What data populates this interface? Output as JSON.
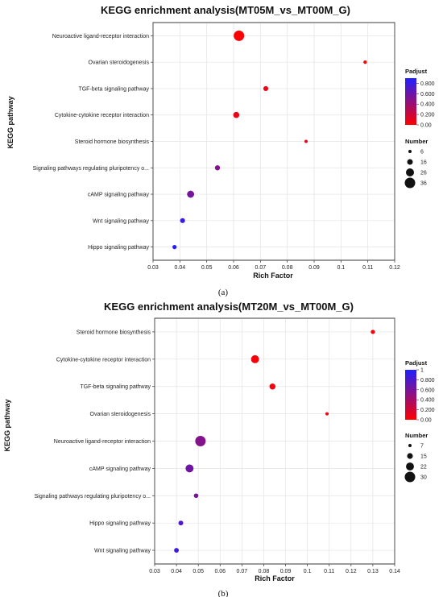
{
  "chart_data": [
    {
      "type": "scatter",
      "title": "KEGG enrichment analysis(MT05M_vs_MT00M_G)",
      "xlabel": "Rich Factor",
      "ylabel": "KEGG pathway",
      "xlim": [
        0.03,
        0.12
      ],
      "xticks": [
        "0.03",
        "0.04",
        "0.05",
        "0.06",
        "0.07",
        "0.08",
        "0.09",
        "0.1",
        "0.11",
        "0.12"
      ],
      "grid": true,
      "caption": "(a)",
      "color_legend": {
        "title": "Padjust",
        "ticks": [
          "0.800",
          "0.600",
          "0.400",
          "0.200",
          "0.00"
        ],
        "min": 0,
        "max": 0.9,
        "low_color": "#ff0000",
        "high_color": "#2020ff"
      },
      "size_legend": {
        "title": "Number",
        "values": [
          6,
          16,
          26,
          36
        ]
      },
      "categories": [
        "Neuroactive ligand-receptor interaction",
        "Ovarian steroidogenesis",
        "TGF-beta signaling pathway",
        "Cytokine-cytokine receptor interaction",
        "Steroid hormone biosynthesis",
        "Signaling pathways regulating pluripotency o...",
        "cAMP signaling pathway",
        "Wnt signaling pathway",
        "Hippo signaling pathway"
      ],
      "points": [
        {
          "category": "Neuroactive ligand-receptor interaction",
          "x": 0.062,
          "number": 36,
          "padjust": 0.02
        },
        {
          "category": "Ovarian steroidogenesis",
          "x": 0.109,
          "number": 7,
          "padjust": 0.03
        },
        {
          "category": "TGF-beta signaling pathway",
          "x": 0.072,
          "number": 13,
          "padjust": 0.05
        },
        {
          "category": "Cytokine-cytokine receptor interaction",
          "x": 0.061,
          "number": 18,
          "padjust": 0.08
        },
        {
          "category": "Steroid hormone biosynthesis",
          "x": 0.087,
          "number": 6,
          "padjust": 0.1
        },
        {
          "category": "Signaling pathways regulating pluripotency o...",
          "x": 0.054,
          "number": 14,
          "padjust": 0.5
        },
        {
          "category": "cAMP signaling pathway",
          "x": 0.044,
          "number": 22,
          "padjust": 0.55
        },
        {
          "category": "Wnt signaling pathway",
          "x": 0.041,
          "number": 13,
          "padjust": 0.78
        },
        {
          "category": "Hippo signaling pathway",
          "x": 0.038,
          "number": 10,
          "padjust": 0.88
        }
      ]
    },
    {
      "type": "scatter",
      "title": "KEGG enrichment analysis(MT20M_vs_MT00M_G)",
      "xlabel": "Rich Factor",
      "ylabel": "KEGG pathway",
      "xlim": [
        0.03,
        0.14
      ],
      "xticks": [
        "0.03",
        "0.04",
        "0.05",
        "0.06",
        "0.07",
        "0.08",
        "0.09",
        "0.1",
        "0.11",
        "0.12",
        "0.13",
        "0.14"
      ],
      "grid": true,
      "caption": "(b)",
      "color_legend": {
        "title": "Padjust",
        "ticks": [
          "1",
          "0.800",
          "0.600",
          "0.400",
          "0.200",
          "0.00"
        ],
        "min": 0,
        "max": 1,
        "low_color": "#ff0000",
        "high_color": "#2020ff"
      },
      "size_legend": {
        "title": "Number",
        "values": [
          7,
          15,
          22,
          30
        ]
      },
      "categories": [
        "Steroid hormone biosynthesis",
        "Cytokine-cytokine receptor interaction",
        "TGF-beta signaling pathway",
        "Ovarian steroidogenesis",
        "Neuroactive ligand-receptor interaction",
        "cAMP signaling pathway",
        "Signaling pathways regulating pluripotency o...",
        "Hippo signaling pathway",
        "Wnt signaling pathway"
      ],
      "points": [
        {
          "category": "Steroid hormone biosynthesis",
          "x": 0.13,
          "number": 10,
          "padjust": 0.03
        },
        {
          "category": "Cytokine-cytokine receptor interaction",
          "x": 0.076,
          "number": 22,
          "padjust": 0.04
        },
        {
          "category": "TGF-beta signaling pathway",
          "x": 0.084,
          "number": 16,
          "padjust": 0.05
        },
        {
          "category": "Ovarian steroidogenesis",
          "x": 0.109,
          "number": 7,
          "padjust": 0.07
        },
        {
          "category": "Neuroactive ligand-receptor interaction",
          "x": 0.051,
          "number": 30,
          "padjust": 0.55
        },
        {
          "category": "cAMP signaling pathway",
          "x": 0.046,
          "number": 22,
          "padjust": 0.65
        },
        {
          "category": "Signaling pathways regulating pluripotency o...",
          "x": 0.049,
          "number": 11,
          "padjust": 0.6
        },
        {
          "category": "Hippo signaling pathway",
          "x": 0.042,
          "number": 12,
          "padjust": 0.8
        },
        {
          "category": "Wnt signaling pathway",
          "x": 0.04,
          "number": 12,
          "padjust": 0.85
        }
      ]
    }
  ]
}
